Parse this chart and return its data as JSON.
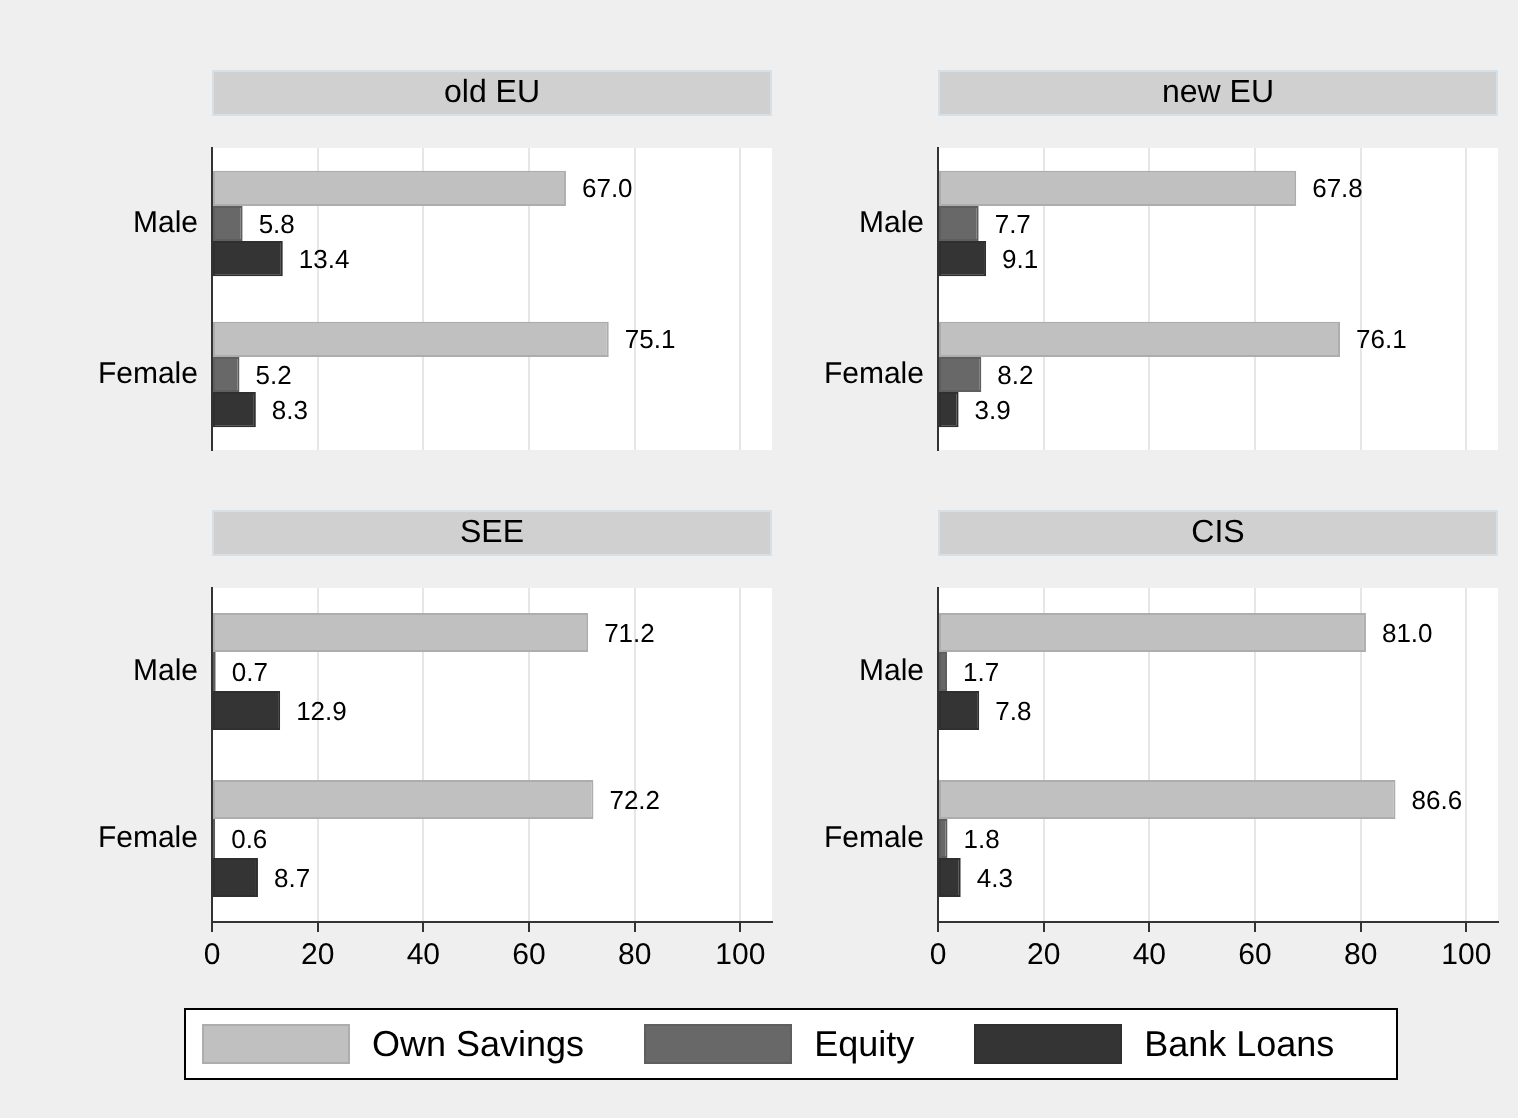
{
  "chart_data": [
    {
      "type": "bar",
      "orientation": "horizontal",
      "title": "old EU",
      "categories": [
        "Male",
        "Female"
      ],
      "series": [
        {
          "name": "Own Savings",
          "color": "#c0c0c0",
          "values": [
            67.0,
            75.1
          ],
          "value_labels": [
            "67.0",
            "75.1"
          ]
        },
        {
          "name": "Equity",
          "color": "#686868",
          "values": [
            5.8,
            5.2
          ],
          "value_labels": [
            "5.8",
            "5.2"
          ]
        },
        {
          "name": "Bank Loans",
          "color": "#343434",
          "values": [
            13.4,
            8.3
          ],
          "value_labels": [
            "13.4",
            "8.3"
          ]
        }
      ],
      "xlim": [
        0,
        106
      ],
      "xticks": [
        0,
        20,
        40,
        60,
        80,
        100
      ],
      "grid": "x",
      "tick_labels": "y",
      "legend": "bottom"
    },
    {
      "type": "bar",
      "orientation": "horizontal",
      "title": "new EU",
      "categories": [
        "Male",
        "Female"
      ],
      "series": [
        {
          "color": "#c0c0c0",
          "values": [
            67.8,
            76.1
          ],
          "value_labels": [
            "67.8",
            "76.1"
          ]
        },
        {
          "color": "#686868",
          "values": [
            7.7,
            8.2
          ],
          "value_labels": [
            "7.7",
            "8.2"
          ]
        },
        {
          "color": "#343434",
          "values": [
            9.1,
            3.9
          ],
          "value_labels": [
            "9.1",
            "3.9"
          ]
        }
      ],
      "xlim": [
        0,
        106
      ],
      "xticks": [
        0,
        20,
        40,
        60,
        80,
        100
      ],
      "grid": "x",
      "tick_labels": "y"
    },
    {
      "type": "bar",
      "orientation": "horizontal",
      "title": "SEE",
      "categories": [
        "Male",
        "Female"
      ],
      "series": [
        {
          "color": "#c0c0c0",
          "values": [
            71.2,
            72.2
          ],
          "value_labels": [
            "71.2",
            "72.2"
          ]
        },
        {
          "color": "#686868",
          "values": [
            0.7,
            0.6
          ],
          "value_labels": [
            "0.7",
            "0.6"
          ]
        },
        {
          "color": "#343434",
          "values": [
            12.9,
            8.7
          ],
          "value_labels": [
            "12.9",
            "8.7"
          ]
        }
      ],
      "xlim": [
        0,
        106
      ],
      "xticks": [
        0,
        20,
        40,
        60,
        80,
        100
      ],
      "grid": "x"
    },
    {
      "type": "bar",
      "orientation": "horizontal",
      "title": "CIS",
      "categories": [
        "Male",
        "Female"
      ],
      "series": [
        {
          "color": "#c0c0c0",
          "values": [
            81.0,
            86.6
          ],
          "value_labels": [
            "81.0",
            "86.6"
          ]
        },
        {
          "color": "#686868",
          "values": [
            1.7,
            1.8
          ],
          "value_labels": [
            "1.7",
            "1.8"
          ]
        },
        {
          "color": "#343434",
          "values": [
            7.8,
            4.3
          ],
          "value_labels": [
            "7.8",
            "4.3"
          ]
        }
      ],
      "xlim": [
        0,
        106
      ],
      "xticks": [
        0,
        20,
        40,
        60,
        80,
        100
      ],
      "grid": "x"
    }
  ]
}
